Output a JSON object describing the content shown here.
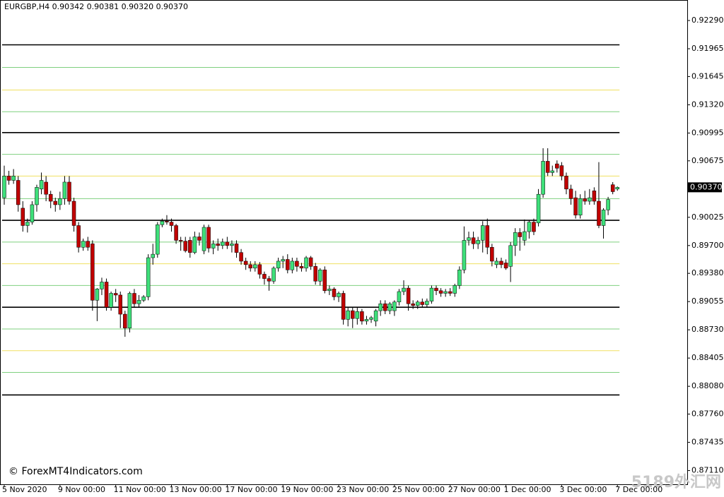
{
  "chart_data": {
    "type": "candlestick",
    "title": "EURGBP,H4  0.90342 0.90381 0.90320 0.90370",
    "watermark": "© ForexMT4Indicators.com",
    "corner_mark": "5189外汇网",
    "bull_color": "#3ee07a",
    "bear_color": "#c00000",
    "wick_color": "#000000",
    "ylim": [
      0.86952,
      0.92526
    ],
    "yticks": [
      {
        "value": 0.9229,
        "label": "0.92290"
      },
      {
        "value": 0.91965,
        "label": "0.91965"
      },
      {
        "value": 0.91645,
        "label": "0.91645"
      },
      {
        "value": 0.9132,
        "label": "0.91320"
      },
      {
        "value": 0.90995,
        "label": "0.90995"
      },
      {
        "value": 0.90675,
        "label": "0.90675"
      },
      {
        "value": 0.90025,
        "label": "0.90025"
      },
      {
        "value": 0.897,
        "label": "0.89700"
      },
      {
        "value": 0.8938,
        "label": "0.89380"
      },
      {
        "value": 0.89055,
        "label": "0.89055"
      },
      {
        "value": 0.8873,
        "label": "0.88730"
      },
      {
        "value": 0.88405,
        "label": "0.88405"
      },
      {
        "value": 0.8808,
        "label": "0.88080"
      },
      {
        "value": 0.8776,
        "label": "0.87760"
      },
      {
        "value": 0.87435,
        "label": "0.87435"
      },
      {
        "value": 0.8711,
        "label": "0.87110"
      }
    ],
    "current_price": {
      "value": 0.9037,
      "label": "0.90370"
    },
    "levels": [
      {
        "value": 0.9201,
        "color": "#000000"
      },
      {
        "value": 0.9175,
        "color": "#7fd07f"
      },
      {
        "value": 0.9149,
        "color": "#f0e060"
      },
      {
        "value": 0.9124,
        "color": "#7fd07f"
      },
      {
        "value": 0.91,
        "color": "#000000"
      },
      {
        "value": 0.9075,
        "color": "#7fd07f"
      },
      {
        "value": 0.905,
        "color": "#f0e060"
      },
      {
        "value": 0.9024,
        "color": "#7fd07f"
      },
      {
        "value": 0.8999,
        "color": "#000000"
      },
      {
        "value": 0.8974,
        "color": "#7fd07f"
      },
      {
        "value": 0.8949,
        "color": "#f0e060"
      },
      {
        "value": 0.8924,
        "color": "#7fd07f"
      },
      {
        "value": 0.8899,
        "color": "#000000"
      },
      {
        "value": 0.8874,
        "color": "#7fd07f"
      },
      {
        "value": 0.8849,
        "color": "#f0e060"
      },
      {
        "value": 0.8824,
        "color": "#7fd07f"
      },
      {
        "value": 0.8798,
        "color": "#000000"
      }
    ],
    "categories": [
      "5 Nov 2020",
      null,
      null,
      null,
      null,
      null,
      null,
      null,
      null,
      null,
      null,
      null,
      "9 Nov 00:00",
      null,
      null,
      null,
      null,
      null,
      null,
      null,
      null,
      null,
      null,
      null,
      "11 Nov 00:00",
      null,
      null,
      null,
      null,
      null,
      null,
      null,
      null,
      null,
      null,
      null,
      "13 Nov 00:00",
      null,
      null,
      null,
      null,
      null,
      null,
      null,
      null,
      null,
      null,
      null,
      "17 Nov 00:00",
      null,
      null,
      null,
      null,
      null,
      null,
      null,
      null,
      null,
      null,
      null,
      "19 Nov 00:00",
      null,
      null,
      null,
      null,
      null,
      null,
      null,
      null,
      null,
      null,
      null,
      "23 Nov 00:00",
      null,
      null,
      null,
      null,
      null,
      null,
      null,
      null,
      null,
      null,
      null,
      "25 Nov 00:00",
      null,
      null,
      null,
      null,
      null,
      null,
      null,
      null,
      null,
      null,
      null,
      "27 Nov 00:00",
      null,
      null,
      null,
      null,
      null,
      null,
      null,
      null,
      null,
      null,
      null,
      "1 Dec 00:00",
      null,
      null,
      null,
      null,
      null,
      null,
      null,
      null,
      null,
      null,
      null,
      "3 Dec 00:00",
      null,
      null,
      null,
      null,
      null,
      null,
      null,
      null,
      null,
      null,
      null,
      "7 Dec 00:00"
    ],
    "candles": [
      [
        0.9025,
        0.9062,
        0.9017,
        0.905
      ],
      [
        0.905,
        0.9056,
        0.904,
        0.9045
      ],
      [
        0.9045,
        0.9058,
        0.9041,
        0.905
      ],
      [
        0.9045,
        0.905,
        0.9009,
        0.9017
      ],
      [
        0.9013,
        0.9021,
        0.8986,
        0.8993
      ],
      [
        0.8993,
        0.9001,
        0.8985,
        0.8997
      ],
      [
        0.8997,
        0.9021,
        0.8994,
        0.9017
      ],
      [
        0.9017,
        0.904,
        0.9009,
        0.9037
      ],
      [
        0.9035,
        0.9054,
        0.9029,
        0.9045
      ],
      [
        0.9043,
        0.905,
        0.9021,
        0.9029
      ],
      [
        0.9029,
        0.9033,
        0.9013,
        0.9021
      ],
      [
        0.9021,
        0.9025,
        0.9009,
        0.9017
      ],
      [
        0.9017,
        0.9032,
        0.9011,
        0.9024
      ],
      [
        0.9024,
        0.905,
        0.9017,
        0.9043
      ],
      [
        0.9043,
        0.905,
        0.9017,
        0.9021
      ],
      [
        0.9021,
        0.9025,
        0.8986,
        0.8993
      ],
      [
        0.8993,
        0.8997,
        0.8962,
        0.8968
      ],
      [
        0.8968,
        0.8978,
        0.8964,
        0.8975
      ],
      [
        0.8975,
        0.898,
        0.8964,
        0.8968
      ],
      [
        0.8972,
        0.8976,
        0.8895,
        0.8907
      ],
      [
        0.8907,
        0.8921,
        0.8883,
        0.892
      ],
      [
        0.892,
        0.8933,
        0.8913,
        0.8928
      ],
      [
        0.8928,
        0.8932,
        0.8895,
        0.8899
      ],
      [
        0.8899,
        0.8917,
        0.8895,
        0.8915
      ],
      [
        0.8915,
        0.892,
        0.8905,
        0.8913
      ],
      [
        0.8913,
        0.8917,
        0.8875,
        0.8891
      ],
      [
        0.8891,
        0.8895,
        0.8865,
        0.8875
      ],
      [
        0.8875,
        0.8917,
        0.887,
        0.8915
      ],
      [
        0.8915,
        0.892,
        0.8899,
        0.8903
      ],
      [
        0.8903,
        0.8913,
        0.8899,
        0.8907
      ],
      [
        0.8907,
        0.8913,
        0.8905,
        0.8911
      ],
      [
        0.8911,
        0.896,
        0.8907,
        0.8956
      ],
      [
        0.8956,
        0.8972,
        0.8948,
        0.896
      ],
      [
        0.896,
        0.8997,
        0.8956,
        0.8994
      ],
      [
        0.8994,
        0.9001,
        0.8991,
        0.8998
      ],
      [
        0.8998,
        0.9005,
        0.8994,
        0.8997
      ],
      [
        0.8997,
        0.9001,
        0.8986,
        0.8993
      ],
      [
        0.8993,
        0.8995,
        0.8972,
        0.8976
      ],
      [
        0.8976,
        0.898,
        0.8964,
        0.8975
      ],
      [
        0.8975,
        0.898,
        0.8962,
        0.8964
      ],
      [
        0.8976,
        0.898,
        0.8956,
        0.8962
      ],
      [
        0.8962,
        0.8986,
        0.896,
        0.898
      ],
      [
        0.898,
        0.8985,
        0.897,
        0.8976
      ],
      [
        0.8964,
        0.8994,
        0.896,
        0.8991
      ],
      [
        0.8991,
        0.8994,
        0.8962,
        0.8967
      ],
      [
        0.8967,
        0.8976,
        0.896,
        0.8972
      ],
      [
        0.8972,
        0.8978,
        0.8964,
        0.897
      ],
      [
        0.897,
        0.8978,
        0.8966,
        0.8974
      ],
      [
        0.8974,
        0.898,
        0.8966,
        0.897
      ],
      [
        0.897,
        0.8976,
        0.8962,
        0.8972
      ],
      [
        0.8972,
        0.8976,
        0.8956,
        0.8962
      ],
      [
        0.8962,
        0.8966,
        0.8948,
        0.8952
      ],
      [
        0.8952,
        0.8956,
        0.8942,
        0.8948
      ],
      [
        0.8948,
        0.8952,
        0.894,
        0.8944
      ],
      [
        0.8944,
        0.8952,
        0.894,
        0.8948
      ],
      [
        0.8948,
        0.8951,
        0.8932,
        0.8937
      ],
      [
        0.8937,
        0.894,
        0.8925,
        0.8932
      ],
      [
        0.8932,
        0.8935,
        0.8918,
        0.8929
      ],
      [
        0.8929,
        0.8946,
        0.8926,
        0.8944
      ],
      [
        0.8944,
        0.8956,
        0.894,
        0.8952
      ],
      [
        0.8952,
        0.8958,
        0.8944,
        0.8954
      ],
      [
        0.8954,
        0.896,
        0.8938,
        0.8942
      ],
      [
        0.8942,
        0.8956,
        0.8938,
        0.8952
      ],
      [
        0.8952,
        0.8956,
        0.894,
        0.8946
      ],
      [
        0.8946,
        0.895,
        0.894,
        0.8944
      ],
      [
        0.8944,
        0.8958,
        0.894,
        0.8956
      ],
      [
        0.8956,
        0.8958,
        0.8942,
        0.8946
      ],
      [
        0.8946,
        0.895,
        0.8925,
        0.8929
      ],
      [
        0.8929,
        0.8944,
        0.8924,
        0.8942
      ],
      [
        0.8942,
        0.8946,
        0.8915,
        0.8918
      ],
      [
        0.8918,
        0.8924,
        0.8913,
        0.892
      ],
      [
        0.892,
        0.8922,
        0.8907,
        0.8911
      ],
      [
        0.8911,
        0.8917,
        0.8905,
        0.8915
      ],
      [
        0.8915,
        0.8918,
        0.8879,
        0.8885
      ],
      [
        0.8885,
        0.8899,
        0.8877,
        0.8895
      ],
      [
        0.8895,
        0.8899,
        0.8875,
        0.8886
      ],
      [
        0.8886,
        0.8899,
        0.8879,
        0.8894
      ],
      [
        0.8894,
        0.8897,
        0.8879,
        0.8883
      ],
      [
        0.8883,
        0.8889,
        0.8879,
        0.8885
      ],
      [
        0.8885,
        0.8889,
        0.8881,
        0.8887
      ],
      [
        0.8883,
        0.8897,
        0.8877,
        0.8895
      ],
      [
        0.8895,
        0.8907,
        0.8889,
        0.8903
      ],
      [
        0.8903,
        0.8907,
        0.8891,
        0.8895
      ],
      [
        0.8895,
        0.8905,
        0.8891,
        0.8903
      ],
      [
        0.8895,
        0.8907,
        0.8889,
        0.8905
      ],
      [
        0.8905,
        0.892,
        0.8901,
        0.8917
      ],
      [
        0.8917,
        0.893,
        0.8913,
        0.8921
      ],
      [
        0.8921,
        0.8924,
        0.8895,
        0.8903
      ],
      [
        0.8903,
        0.8907,
        0.8897,
        0.8901
      ],
      [
        0.8901,
        0.8907,
        0.8897,
        0.8905
      ],
      [
        0.8905,
        0.8909,
        0.8899,
        0.8902
      ],
      [
        0.8902,
        0.8909,
        0.8899,
        0.8906
      ],
      [
        0.8906,
        0.8924,
        0.8903,
        0.8921
      ],
      [
        0.8921,
        0.8924,
        0.8913,
        0.8918
      ],
      [
        0.8918,
        0.8921,
        0.8911,
        0.8915
      ],
      [
        0.8915,
        0.892,
        0.8911,
        0.8917
      ],
      [
        0.8917,
        0.8921,
        0.8912,
        0.8915
      ],
      [
        0.8915,
        0.8926,
        0.8911,
        0.8924
      ],
      [
        0.8924,
        0.8946,
        0.892,
        0.8942
      ],
      [
        0.8942,
        0.8992,
        0.8938,
        0.8976
      ],
      [
        0.8976,
        0.8986,
        0.897,
        0.8979
      ],
      [
        0.8979,
        0.8986,
        0.8966,
        0.8972
      ],
      [
        0.8972,
        0.898,
        0.8966,
        0.8976
      ],
      [
        0.8976,
        0.8998,
        0.8962,
        0.8993
      ],
      [
        0.8993,
        0.9001,
        0.896,
        0.8968
      ],
      [
        0.8968,
        0.8972,
        0.8946,
        0.8952
      ],
      [
        0.8948,
        0.8956,
        0.8944,
        0.8952
      ],
      [
        0.8952,
        0.8956,
        0.8944,
        0.8948
      ],
      [
        0.895,
        0.8954,
        0.8942,
        0.8944
      ],
      [
        0.8946,
        0.8974,
        0.8928,
        0.897
      ],
      [
        0.897,
        0.899,
        0.8958,
        0.8985
      ],
      [
        0.8985,
        0.899,
        0.8964,
        0.898
      ],
      [
        0.8976,
        0.9,
        0.897,
        0.8986
      ],
      [
        0.8986,
        0.8999,
        0.8978,
        0.8997
      ],
      [
        0.8997,
        0.9001,
        0.8982,
        0.8986
      ],
      [
        0.8996,
        0.9035,
        0.8992,
        0.9029
      ],
      [
        0.9029,
        0.9082,
        0.9025,
        0.9067
      ],
      [
        0.9067,
        0.9082,
        0.905,
        0.9054
      ],
      [
        0.9054,
        0.9062,
        0.905,
        0.9056
      ],
      [
        0.9064,
        0.9068,
        0.9054,
        0.9059
      ],
      [
        0.9062,
        0.9066,
        0.9045,
        0.905
      ],
      [
        0.905,
        0.9054,
        0.9029,
        0.9035
      ],
      [
        0.9035,
        0.904,
        0.9017,
        0.9024
      ],
      [
        0.9025,
        0.9033,
        0.9001,
        0.9005
      ],
      [
        0.9005,
        0.9029,
        0.9001,
        0.9024
      ],
      [
        0.9024,
        0.9033,
        0.9017,
        0.9021
      ],
      [
        0.9021,
        0.9035,
        0.9017,
        0.9025
      ],
      [
        0.9033,
        0.9037,
        0.9017,
        0.9021
      ],
      [
        0.9021,
        0.9066,
        0.899,
        0.8993
      ],
      [
        0.8993,
        0.9013,
        0.8978,
        0.9011
      ],
      [
        0.9011,
        0.9026,
        0.9005,
        0.9023
      ],
      [
        0.904,
        0.9043,
        0.9029,
        0.9032
      ],
      [
        0.9035,
        0.9038,
        0.9033,
        0.9037
      ]
    ]
  }
}
